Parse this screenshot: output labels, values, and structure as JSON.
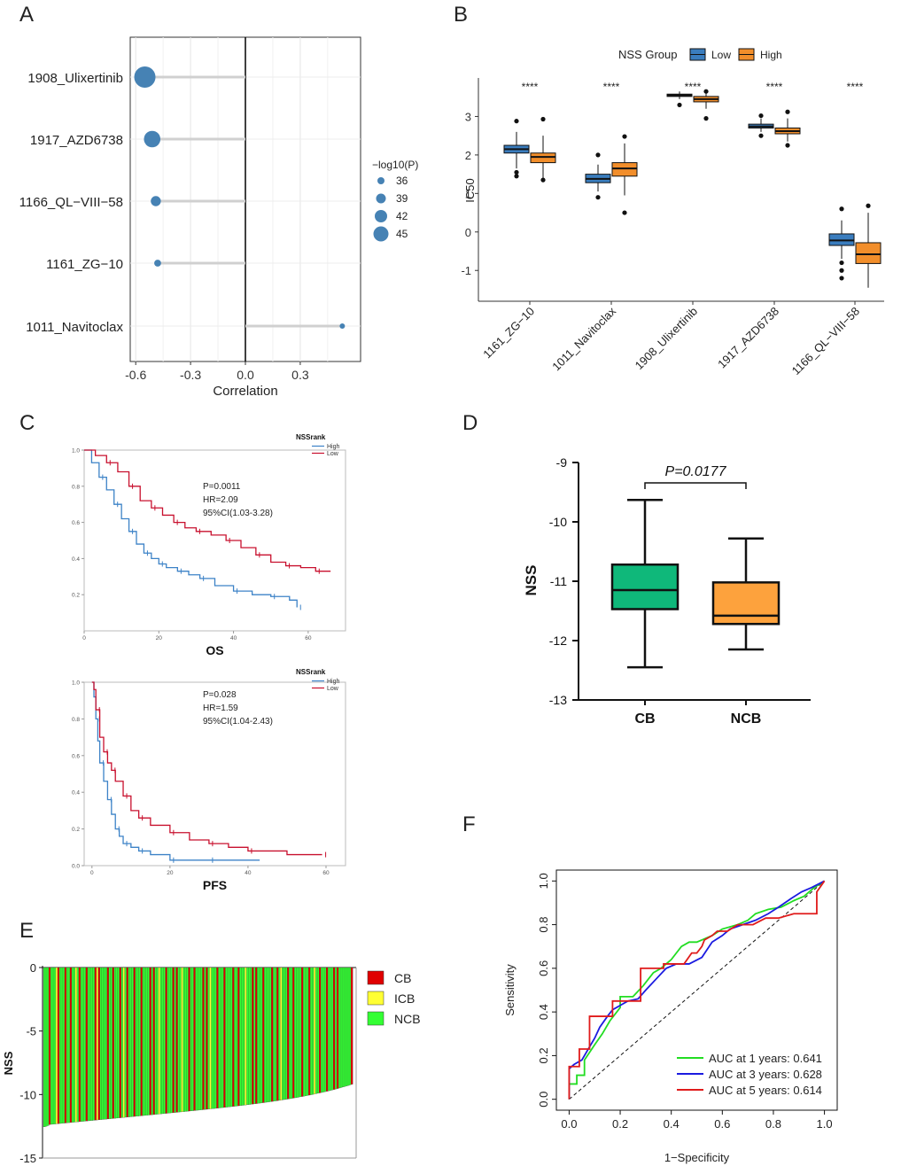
{
  "figure": {
    "panel_labels": [
      "A",
      "B",
      "C",
      "D",
      "E",
      "F"
    ]
  },
  "chart_data": [
    {
      "id": "A",
      "type": "scatter",
      "subtype": "lollipop",
      "xlabel": "Correlation",
      "xlim": [
        -0.63,
        0.63
      ],
      "xticks": [
        "-0.6",
        "-0.3",
        "0.0",
        "0.3"
      ],
      "categories": [
        "1908_Ulixertinib",
        "1917_AZD6738",
        "1166_QL−VIII−58",
        "1161_ZG−10",
        "1011_Navitoclax"
      ],
      "values": [
        -0.55,
        -0.51,
        -0.49,
        -0.48,
        0.53
      ],
      "neglog10p": [
        45,
        42,
        38,
        36,
        35
      ],
      "legend_title": "−log10(P)",
      "legend_values": [
        "36",
        "39",
        "42",
        "45"
      ],
      "point_color": "#4682B4"
    },
    {
      "id": "B",
      "type": "box",
      "ylabel": "IC50",
      "ylim": [
        -1.8,
        4.0
      ],
      "yticks": [
        "-1",
        "0",
        "1",
        "2",
        "3"
      ],
      "legend_title": "NSS Group",
      "series": [
        {
          "name": "Low",
          "color": "#3A7DBE"
        },
        {
          "name": "High",
          "color": "#F28E2B"
        }
      ],
      "categories": [
        "1161_ZG−10",
        "1011_Navitoclax",
        "1908_Ulixertinib",
        "1917_AZD6738",
        "1166_QL−VIII−58"
      ],
      "significance": [
        "****",
        "****",
        "****",
        "****",
        "****"
      ],
      "boxes": {
        "Low": [
          [
            1.65,
            2.05,
            2.15,
            2.25,
            2.6
          ],
          [
            1.05,
            1.28,
            1.38,
            1.5,
            1.75
          ],
          [
            3.45,
            3.52,
            3.55,
            3.58,
            3.65
          ],
          [
            2.6,
            2.7,
            2.74,
            2.8,
            2.95
          ],
          [
            -0.7,
            -0.35,
            -0.22,
            -0.05,
            0.3
          ]
        ],
        "High": [
          [
            1.4,
            1.8,
            1.95,
            2.05,
            2.5
          ],
          [
            0.95,
            1.45,
            1.65,
            1.8,
            2.3
          ],
          [
            3.2,
            3.38,
            3.45,
            3.52,
            3.62
          ],
          [
            2.35,
            2.55,
            2.62,
            2.7,
            2.95
          ],
          [
            -1.45,
            -0.82,
            -0.58,
            -0.28,
            0.5
          ]
        ]
      },
      "outliers": {
        "Low": [
          [
            2.88,
            1.45,
            1.55
          ],
          [
            2.0,
            0.9
          ],
          [
            3.3
          ],
          [
            2.5,
            3.02
          ],
          [
            0.6,
            -1.2,
            -1.0,
            -0.8
          ]
        ],
        "High": [
          [
            2.93,
            1.35
          ],
          [
            0.5,
            2.48
          ],
          [
            2.95,
            3.65
          ],
          [
            2.25,
            3.12
          ],
          [
            0.68
          ]
        ]
      }
    },
    {
      "id": "C1",
      "type": "line",
      "subtype": "kaplan-meier",
      "xlabel": "OS",
      "xlim": [
        0,
        70
      ],
      "ylim": [
        0.0,
        1.0
      ],
      "xticks": [
        "0",
        "20",
        "40",
        "60"
      ],
      "yticks": [
        "0.2",
        "0.4",
        "0.6",
        "0.8",
        "1.0"
      ],
      "legend_title": "NSSrank",
      "annotation": [
        "P=0.0011",
        "HR=2.09",
        "95%CI(1.03-3.28)"
      ],
      "series": [
        {
          "name": "High",
          "color": "#3C82C7",
          "x": [
            0,
            2,
            4,
            6,
            8,
            10,
            12,
            14,
            16,
            18,
            20,
            22,
            25,
            28,
            31,
            35,
            40,
            45,
            50,
            55,
            57
          ],
          "y": [
            1.0,
            0.93,
            0.85,
            0.78,
            0.7,
            0.62,
            0.55,
            0.48,
            0.43,
            0.4,
            0.37,
            0.35,
            0.33,
            0.31,
            0.29,
            0.25,
            0.22,
            0.2,
            0.19,
            0.17,
            0.13
          ]
        },
        {
          "name": "Low",
          "color": "#C8102E",
          "x": [
            0,
            3,
            6,
            9,
            12,
            15,
            18,
            21,
            24,
            27,
            30,
            34,
            38,
            42,
            46,
            50,
            54,
            58,
            62,
            66
          ],
          "y": [
            1.0,
            0.97,
            0.93,
            0.88,
            0.8,
            0.72,
            0.68,
            0.64,
            0.6,
            0.57,
            0.55,
            0.53,
            0.5,
            0.46,
            0.42,
            0.38,
            0.36,
            0.35,
            0.33,
            0.33
          ]
        }
      ]
    },
    {
      "id": "C2",
      "type": "line",
      "subtype": "kaplan-meier",
      "xlabel": "PFS",
      "xlim": [
        -2,
        65
      ],
      "ylim": [
        0.0,
        1.0
      ],
      "xticks": [
        "0",
        "20",
        "40",
        "60"
      ],
      "yticks": [
        "0.0",
        "0.2",
        "0.4",
        "0.6",
        "0.8",
        "1.0"
      ],
      "legend_title": "NSSrank",
      "annotation": [
        "P=0.028",
        "HR=1.59",
        "95%CI(1.04-2.43)"
      ],
      "series": [
        {
          "name": "High",
          "color": "#3C82C7",
          "x": [
            0,
            0.5,
            1,
            1.5,
            2,
            3,
            4,
            5,
            6,
            7,
            8,
            10,
            12,
            15,
            20,
            25,
            30,
            43
          ],
          "y": [
            1.0,
            0.92,
            0.8,
            0.68,
            0.56,
            0.46,
            0.36,
            0.28,
            0.2,
            0.16,
            0.12,
            0.1,
            0.08,
            0.06,
            0.03,
            0.03,
            0.03,
            0.03
          ]
        },
        {
          "name": "Low",
          "color": "#C8102E",
          "x": [
            0,
            0.5,
            1,
            2,
            3,
            4,
            5,
            6,
            8,
            10,
            12,
            15,
            20,
            25,
            30,
            35,
            40,
            50,
            59
          ],
          "y": [
            1.0,
            0.96,
            0.85,
            0.7,
            0.62,
            0.56,
            0.52,
            0.46,
            0.38,
            0.3,
            0.26,
            0.22,
            0.18,
            0.14,
            0.12,
            0.1,
            0.08,
            0.06,
            0.06
          ]
        }
      ]
    },
    {
      "id": "D",
      "type": "box",
      "ylabel": "NSS",
      "ylim": [
        -13,
        -9
      ],
      "yticks": [
        "-13",
        "-12",
        "-11",
        "-10",
        "-9"
      ],
      "categories": [
        "CB",
        "NCB"
      ],
      "pvalue": "P=0.0177",
      "colors": [
        "#0FB87A",
        "#FDA23D"
      ],
      "boxes": [
        [
          -12.45,
          -11.47,
          -11.15,
          -10.72,
          -9.63
        ],
        [
          -12.15,
          -11.72,
          -11.58,
          -11.02,
          -10.28
        ]
      ]
    },
    {
      "id": "E",
      "type": "bar",
      "subtype": "waterfall",
      "ylabel": "NSS",
      "ylim": [
        -15,
        0
      ],
      "yticks": [
        "0",
        "-5",
        "-10",
        "-15"
      ],
      "legend": [
        {
          "name": "CB",
          "color": "#E00000"
        },
        {
          "name": "ICB",
          "color": "#FFFF33"
        },
        {
          "name": "NCB",
          "color": "#33FF33"
        }
      ],
      "n_samples": 175,
      "min": -12.4,
      "max": -9.2,
      "group_pattern": "NNNCNNNICNNNCNNCNNINCNNNCNNNNCICNNNNCNNCNNNCNINCNNNCNNNCNNNNCNCNNINNNCNNNCNCNNINNNCNNCNNNNCNCNINNNCNNNCNNNNCNNCNNNINNNCNCNNNCNNNNCNNCNINNNCNNCNNNNCNNNCNNINNCNNNCNNNCNCNNNN"
    },
    {
      "id": "F",
      "type": "line",
      "subtype": "roc",
      "xlabel": "1−Specificity",
      "ylabel": "Sensitivity",
      "xlim": [
        0,
        1
      ],
      "ylim": [
        0,
        1
      ],
      "xticks": [
        "0.0",
        "0.2",
        "0.4",
        "0.6",
        "0.8",
        "1.0"
      ],
      "yticks": [
        "0.0",
        "0.2",
        "0.4",
        "0.6",
        "0.8",
        "1.0"
      ],
      "series": [
        {
          "name": "AUC at 1 years: 0.641",
          "color": "#22DD22",
          "x": [
            0,
            0,
            0.03,
            0.03,
            0.06,
            0.06,
            0.1,
            0.13,
            0.16,
            0.2,
            0.2,
            0.25,
            0.29,
            0.33,
            0.36,
            0.4,
            0.44,
            0.47,
            0.5,
            0.56,
            0.6,
            0.66,
            0.7,
            0.73,
            0.78,
            0.83,
            0.88,
            0.92,
            0.96,
            1.0
          ],
          "y": [
            0,
            0.07,
            0.07,
            0.11,
            0.11,
            0.18,
            0.25,
            0.3,
            0.36,
            0.42,
            0.47,
            0.47,
            0.52,
            0.58,
            0.6,
            0.64,
            0.7,
            0.72,
            0.72,
            0.75,
            0.78,
            0.8,
            0.82,
            0.85,
            0.87,
            0.88,
            0.91,
            0.93,
            0.97,
            1.0
          ]
        },
        {
          "name": "AUC at 3 years: 0.628",
          "color": "#1B1BE0",
          "x": [
            0,
            0,
            0.02,
            0.05,
            0.07,
            0.1,
            0.12,
            0.15,
            0.17,
            0.2,
            0.23,
            0.27,
            0.3,
            0.34,
            0.38,
            0.42,
            0.47,
            0.52,
            0.56,
            0.6,
            0.63,
            0.68,
            0.73,
            0.78,
            0.82,
            0.87,
            0.91,
            0.95,
            1.0
          ],
          "y": [
            0,
            0.14,
            0.16,
            0.18,
            0.22,
            0.28,
            0.33,
            0.38,
            0.41,
            0.43,
            0.45,
            0.46,
            0.5,
            0.55,
            0.6,
            0.62,
            0.62,
            0.65,
            0.72,
            0.75,
            0.78,
            0.8,
            0.82,
            0.85,
            0.88,
            0.92,
            0.95,
            0.97,
            1.0
          ]
        },
        {
          "name": "AUC at 5 years: 0.614",
          "color": "#E01B1B",
          "x": [
            0,
            0,
            0.04,
            0.04,
            0.08,
            0.08,
            0.17,
            0.17,
            0.28,
            0.28,
            0.37,
            0.37,
            0.45,
            0.48,
            0.5,
            0.52,
            0.53,
            0.56,
            0.58,
            0.62,
            0.66,
            0.72,
            0.77,
            0.82,
            0.88,
            0.97,
            0.97,
            1.0
          ],
          "y": [
            0,
            0.15,
            0.15,
            0.23,
            0.23,
            0.38,
            0.38,
            0.45,
            0.45,
            0.6,
            0.6,
            0.62,
            0.62,
            0.67,
            0.67,
            0.7,
            0.73,
            0.75,
            0.77,
            0.77,
            0.8,
            0.8,
            0.83,
            0.83,
            0.85,
            0.85,
            0.95,
            1.0
          ]
        }
      ]
    }
  ]
}
